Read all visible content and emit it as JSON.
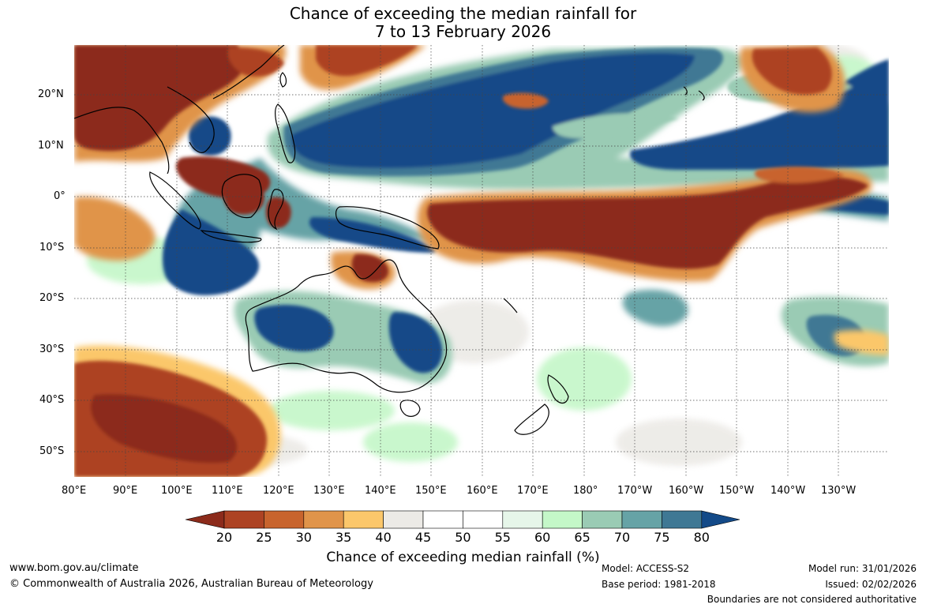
{
  "title": {
    "line1": "Chance of exceeding the median rainfall for",
    "line2": "7 to 13 February 2026"
  },
  "map": {
    "lat_labels": [
      "20°N",
      "10°N",
      "0°",
      "10°S",
      "20°S",
      "30°S",
      "40°S",
      "50°S"
    ],
    "lon_labels": [
      "80°E",
      "90°E",
      "100°E",
      "110°E",
      "120°E",
      "130°E",
      "140°E",
      "150°E",
      "160°E",
      "170°E",
      "180°",
      "170°W",
      "160°W",
      "150°W",
      "140°W",
      "130°W"
    ],
    "colors": {
      "c20": "#8c2b1b",
      "c25": "#ad4323",
      "c30": "#c8642d",
      "c35": "#e0944a",
      "c40": "#fbc76b",
      "c45": "#eceae6",
      "c55": "#ffffff",
      "c60": "#e6f6e9",
      "c65": "#c4f7c8",
      "c70": "#9acbb4",
      "c75": "#66a3a6",
      "c80": "#3f7894",
      "c85": "#134a88"
    }
  },
  "colorbar": {
    "labels": [
      "20",
      "25",
      "30",
      "35",
      "40",
      "45",
      "50",
      "55",
      "60",
      "65",
      "70",
      "75",
      "80"
    ],
    "colors": [
      "#8c2b1b",
      "#ad4323",
      "#c8642d",
      "#e0944a",
      "#fbc76b",
      "#eceae6",
      "#ffffff",
      "#ffffff",
      "#e6f6e9",
      "#c4f7c8",
      "#9acbb4",
      "#66a3a6",
      "#3f7894",
      "#134a88"
    ],
    "title": "Chance of exceeding median rainfall (%)"
  },
  "footer": {
    "website": "www.bom.gov.au/climate",
    "copyright": "© Commonwealth of Australia 2026, Australian Bureau of Meteorology",
    "model": "Model: ACCESS-S2",
    "base_period": "Base period: 1981-2018",
    "model_run": "Model run: 31/01/2026",
    "issued": "Issued: 02/02/2026",
    "disclaimer": "Boundaries are not considered authoritative"
  }
}
